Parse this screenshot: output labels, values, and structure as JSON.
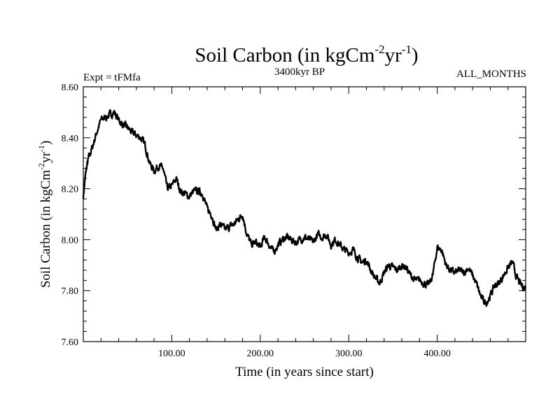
{
  "chart_data": {
    "type": "line",
    "title": {
      "main": "Soil Carbon (in kgCm",
      "sup1": "-2",
      "mid": "yr",
      "sup2": "-1",
      "end": ")"
    },
    "subtitle_left": "Expt = tFMfa",
    "subtitle_center": "3400kyr BP",
    "subtitle_right": "ALL_MONTHS",
    "xlabel": "Time (in years since start)",
    "ylabel": {
      "main": "Soil Carbon (in kgCm",
      "sup1": "-2",
      "mid": "yr",
      "sup2": "-1",
      "end": ")"
    },
    "xlim": [
      0,
      500
    ],
    "ylim": [
      7.6,
      8.6
    ],
    "xticks": [
      100,
      200,
      300,
      400
    ],
    "xtick_labels": [
      "100.00",
      "200.00",
      "300.00",
      "400.00"
    ],
    "yticks": [
      7.6,
      7.8,
      8.0,
      8.2,
      8.4,
      8.6
    ],
    "ytick_labels": [
      "7.60",
      "7.80",
      "8.00",
      "8.20",
      "8.40",
      "8.60"
    ],
    "grid": false,
    "series": [
      {
        "name": "Soil Carbon",
        "x": [
          0,
          3,
          6,
          10,
          15,
          20,
          25,
          30,
          35,
          40,
          45,
          50,
          55,
          60,
          65,
          70,
          75,
          80,
          85,
          90,
          95,
          100,
          105,
          110,
          115,
          120,
          125,
          130,
          135,
          140,
          145,
          150,
          155,
          160,
          165,
          170,
          175,
          180,
          185,
          190,
          195,
          200,
          205,
          210,
          215,
          220,
          225,
          230,
          235,
          240,
          245,
          250,
          255,
          260,
          265,
          270,
          275,
          280,
          285,
          290,
          295,
          300,
          305,
          310,
          315,
          320,
          325,
          330,
          335,
          340,
          345,
          350,
          355,
          360,
          365,
          370,
          375,
          380,
          385,
          390,
          395,
          400,
          405,
          410,
          415,
          420,
          425,
          430,
          435,
          440,
          445,
          450,
          455,
          460,
          465,
          470,
          475,
          480,
          485,
          490,
          495,
          500
        ],
        "values": [
          8.17,
          8.27,
          8.32,
          8.36,
          8.42,
          8.47,
          8.48,
          8.49,
          8.5,
          8.47,
          8.45,
          8.44,
          8.42,
          8.41,
          8.4,
          8.37,
          8.3,
          8.27,
          8.29,
          8.28,
          8.2,
          8.21,
          8.24,
          8.19,
          8.18,
          8.17,
          8.19,
          8.19,
          8.18,
          8.12,
          8.1,
          8.04,
          8.06,
          8.04,
          8.05,
          8.06,
          8.08,
          8.1,
          8.02,
          7.98,
          7.99,
          7.97,
          8.01,
          7.98,
          7.95,
          7.98,
          8.0,
          8.01,
          8.0,
          7.99,
          8.0,
          8.01,
          8.0,
          7.99,
          8.02,
          8.01,
          8.02,
          7.98,
          8.0,
          7.98,
          7.96,
          7.95,
          7.96,
          7.93,
          7.91,
          7.92,
          7.88,
          7.85,
          7.83,
          7.87,
          7.9,
          7.89,
          7.88,
          7.9,
          7.89,
          7.86,
          7.84,
          7.84,
          7.83,
          7.82,
          7.86,
          7.97,
          7.96,
          7.9,
          7.88,
          7.87,
          7.88,
          7.87,
          7.89,
          7.86,
          7.82,
          7.77,
          7.75,
          7.78,
          7.82,
          7.83,
          7.86,
          7.89,
          7.91,
          7.85,
          7.82,
          7.81
        ]
      }
    ]
  }
}
